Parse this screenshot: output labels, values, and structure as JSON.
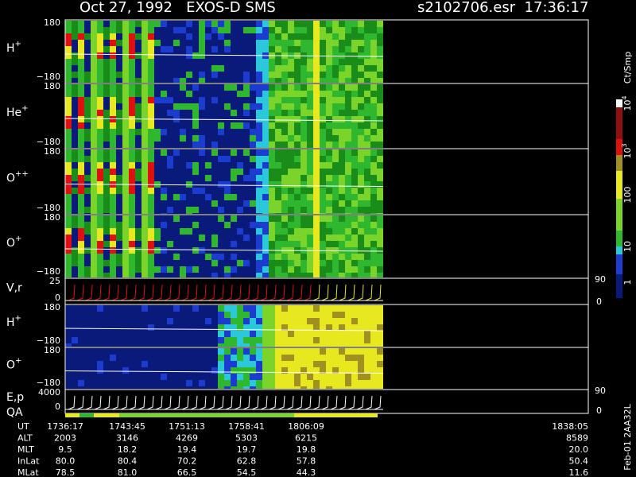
{
  "header": {
    "title": "Oct 27, 1992   EXOS-D SMS",
    "file": "s2102706.esr  17:36:17"
  },
  "panels": [
    {
      "label": "H",
      "sup": "+",
      "top": "180",
      "bottom": "−180"
    },
    {
      "label": "He",
      "sup": "+",
      "top": "180",
      "bottom": "−180"
    },
    {
      "label": "O",
      "sup": "++",
      "top": "180",
      "bottom": "−180"
    },
    {
      "label": "O",
      "sup": "+",
      "top": "180",
      "bottom": "−180"
    },
    {
      "label": "V,r",
      "top": "25",
      "bottom": "0",
      "right_top": "90",
      "right_bottom": "0"
    },
    {
      "label": "H",
      "sup": "+",
      "top": "180",
      "bottom": "−180"
    },
    {
      "label": "O",
      "sup": "+",
      "top": "180",
      "bottom": "−180"
    },
    {
      "label": "E,p",
      "top": "4000",
      "bottom": "0",
      "right_top": "90",
      "right_bottom": "0"
    }
  ],
  "qa": "QA",
  "colorbar": {
    "unit": "Ct/Smp",
    "ticks": [
      {
        "base": "10",
        "exp": "4"
      },
      {
        "base": "10",
        "exp": "3"
      },
      {
        "base": "100"
      },
      {
        "base": "10"
      },
      {
        "base": "1"
      }
    ]
  },
  "table": {
    "rows": [
      {
        "label": "UT",
        "values": [
          "1736:17",
          "1743:45",
          "1751:13",
          "1758:41",
          "1806:09",
          "1838:05"
        ]
      },
      {
        "label": "ALT",
        "values": [
          "2003",
          "3146",
          "4269",
          "5303",
          "6215",
          "8589"
        ]
      },
      {
        "label": "MLT",
        "values": [
          "9.5",
          "18.2",
          "19.4",
          "19.7",
          "19.8",
          "20.0"
        ]
      },
      {
        "label": "InLat",
        "values": [
          "80.0",
          "80.4",
          "70.2",
          "62.8",
          "57.8",
          "50.4"
        ]
      },
      {
        "label": "MLat",
        "values": [
          "78.5",
          "81.0",
          "66.5",
          "54.5",
          "44.3",
          "11.6"
        ]
      }
    ]
  },
  "footer": "Feb-01 2AA32L"
}
